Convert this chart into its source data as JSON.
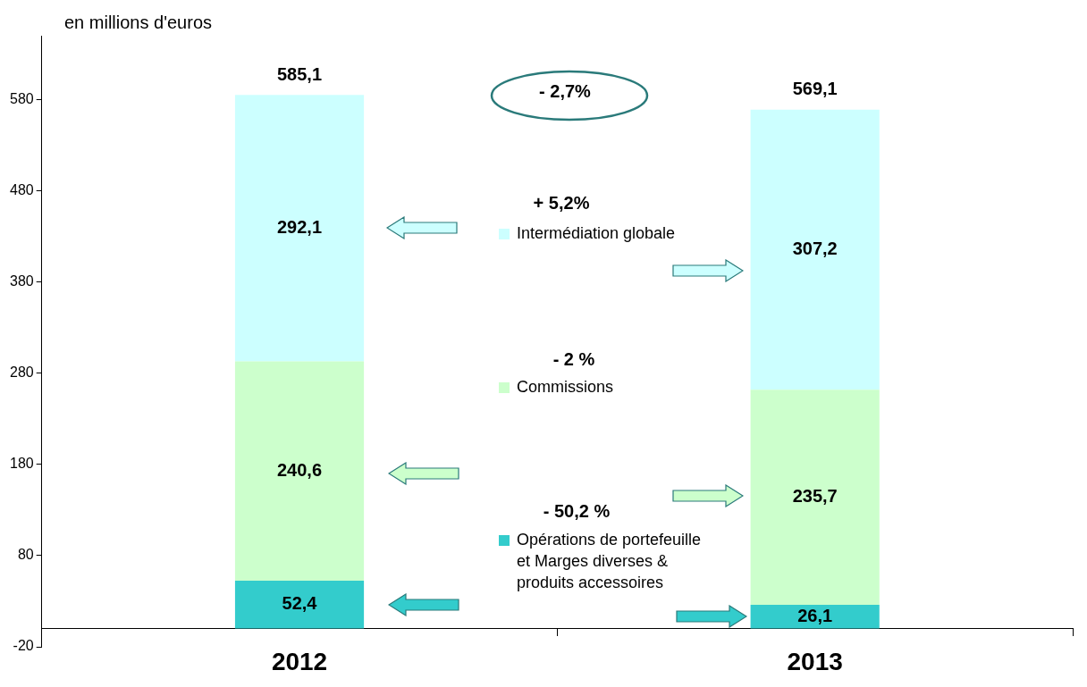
{
  "chart_data": {
    "type": "bar",
    "stacked": true,
    "ylabel": "en millions d'euros",
    "categories": [
      "2012",
      "2013"
    ],
    "series": [
      {
        "name": "Opérations de portefeuille et Marges diverses & produits accessoires",
        "color": "#33cccc",
        "values": [
          52.4,
          26.1
        ],
        "value_labels": [
          "52,4",
          "26,1"
        ]
      },
      {
        "name": "Commissions",
        "color": "#ccffcc",
        "values": [
          240.6,
          235.7
        ],
        "value_labels": [
          "240,6",
          "235,7"
        ]
      },
      {
        "name": "Intermédiation globale",
        "color": "#ccffff",
        "values": [
          292.1,
          307.2
        ],
        "value_labels": [
          "292,1",
          "307,2"
        ]
      }
    ],
    "ylim": [
      -20,
      650
    ],
    "yticks": [
      -20,
      80,
      180,
      280,
      380,
      480,
      580
    ],
    "grid": false,
    "legend": "center",
    "totals": [
      "585,1",
      "569,1"
    ],
    "annotations": [
      "- 2,7%",
      "+ 5,2%",
      "- 2 %",
      "- 50,2 %"
    ]
  }
}
